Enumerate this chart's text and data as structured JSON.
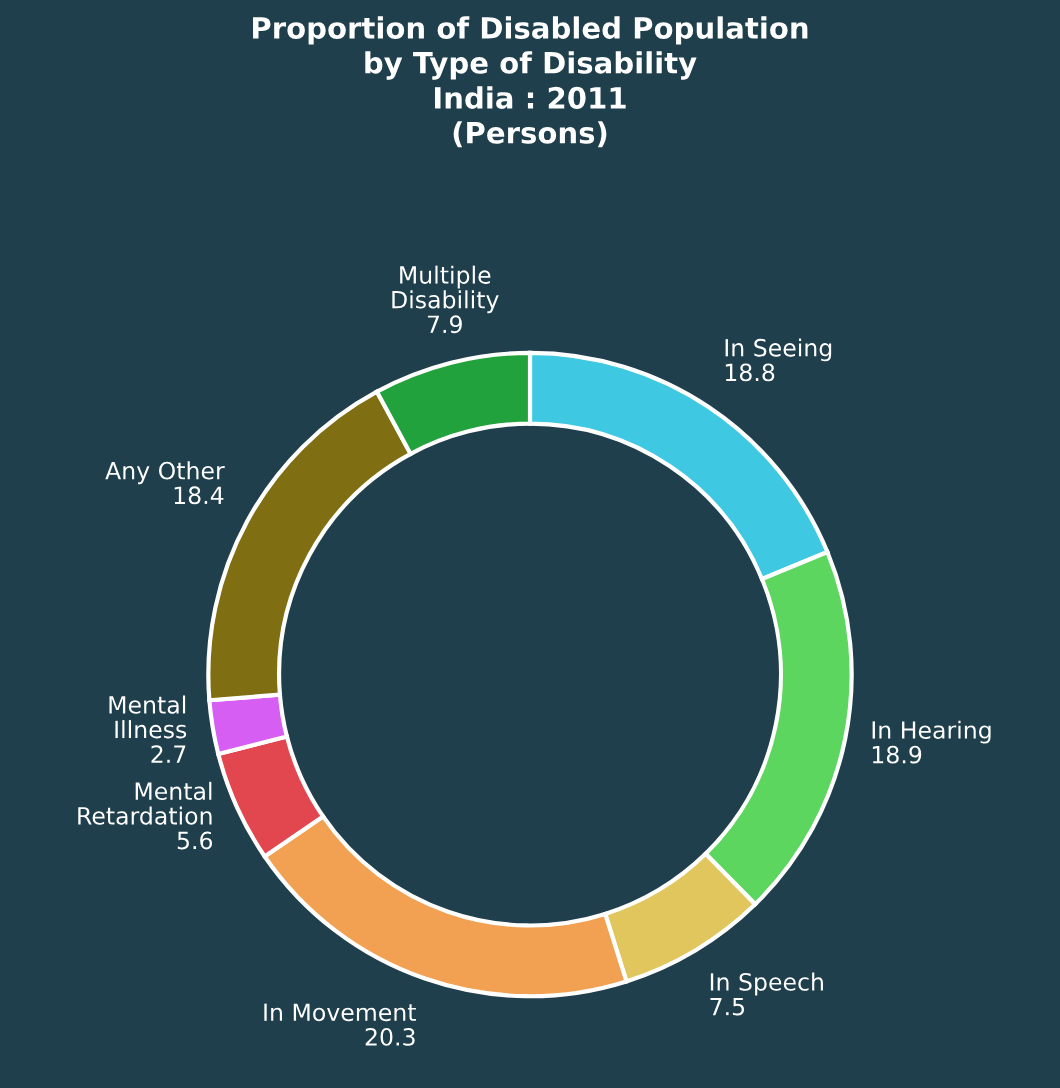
{
  "chart_data": {
    "type": "donut",
    "title": "Proportion of Disabled Population\nby Type of Disability\nIndia : 2011\n(Persons)",
    "categories": [
      "In Seeing",
      "In Hearing",
      "In Speech",
      "In Movement",
      "Mental Retardation",
      "Mental Illness",
      "Any Other",
      "Multiple Disability"
    ],
    "values": [
      18.8,
      18.9,
      7.5,
      20.3,
      5.6,
      2.7,
      18.4,
      7.9
    ],
    "colors": [
      "#3ec8e2",
      "#5dd65f",
      "#e0c65c",
      "#f2a052",
      "#e2474f",
      "#d75ef2",
      "#7f6e12",
      "#22a23c"
    ],
    "data_labels": true,
    "legend": false
  }
}
